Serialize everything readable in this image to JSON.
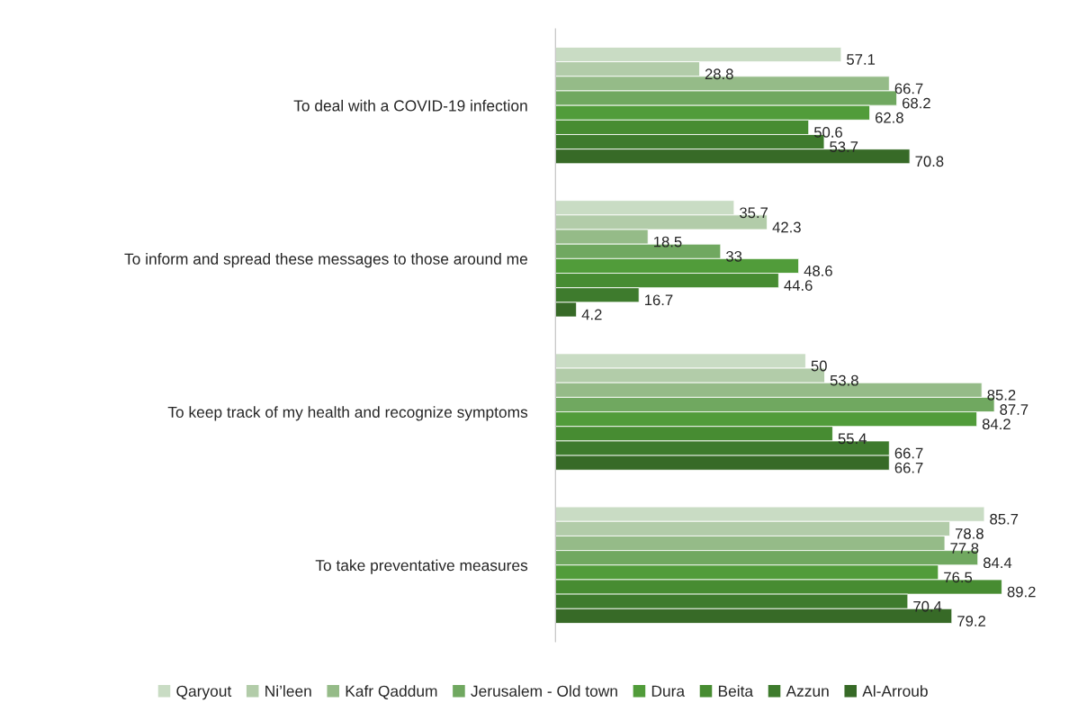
{
  "chart_data": {
    "type": "bar",
    "orientation": "horizontal",
    "data_labels": true,
    "legend": "bottom",
    "grid": false,
    "categories": [
      "To deal with a COVID-19 infection",
      "To inform and spread these messages to those around me",
      "To keep track of my health and recognize symptoms",
      "To take preventative measures"
    ],
    "series": [
      {
        "name": "Qaryout",
        "color": "#c9dcc4",
        "values": [
          57.1,
          35.7,
          50,
          85.7
        ]
      },
      {
        "name": "Ni’leen",
        "color": "#b2cca9",
        "values": [
          28.8,
          42.3,
          53.8,
          78.8
        ]
      },
      {
        "name": "Kafr Qaddum",
        "color": "#95bb88",
        "values": [
          66.7,
          18.5,
          85.2,
          77.8
        ]
      },
      {
        "name": "Jerusalem - Old town",
        "color": "#70a860",
        "values": [
          68.2,
          33,
          87.7,
          84.4
        ]
      },
      {
        "name": "Dura",
        "color": "#519c3a",
        "values": [
          62.8,
          48.6,
          84.2,
          76.5
        ]
      },
      {
        "name": "Beita",
        "color": "#478c32",
        "values": [
          50.6,
          44.6,
          55.4,
          89.2
        ]
      },
      {
        "name": "Azzun",
        "color": "#3e7b2d",
        "values": [
          53.7,
          16.7,
          66.7,
          70.4
        ]
      },
      {
        "name": "Al-Arroub",
        "color": "#376a27",
        "values": [
          70.8,
          4.2,
          66.7,
          79.2
        ]
      }
    ]
  }
}
